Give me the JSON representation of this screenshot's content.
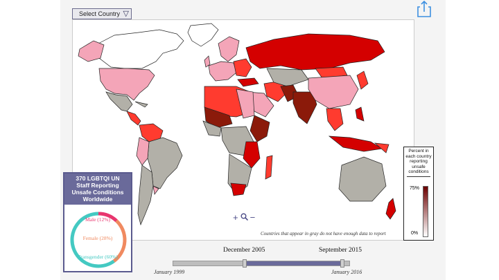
{
  "toolbar": {
    "select_label": "Select Country",
    "select_caret": "▽",
    "share_icon": "share-icon"
  },
  "colors": {
    "unsafe_high": "#d40000",
    "unsafe_mid": "#ff3b2f",
    "unsafe_low": "#f4a5b8",
    "dark_red": "#8b1a0a",
    "no_data": "#b2b0a8",
    "accent": "#6a6a9a"
  },
  "zoom": {
    "in": "+",
    "magnifier": "🔍",
    "out": "−"
  },
  "map_note": "Countries that appear in gray do not have enough data to report",
  "legend": {
    "title_lines": [
      "Percent in",
      "each country",
      "reporting",
      "unsafe",
      "conditions"
    ],
    "max_label": "75%",
    "min_label": "0%"
  },
  "stats": {
    "heading_lines": [
      "370 LGBTQI UN",
      "Staff Reporting",
      "Unsafe Conditions",
      "Worldwide"
    ],
    "segments": [
      {
        "label": "Male (12%)",
        "percent": 12,
        "color": "#e8356e"
      },
      {
        "label": "Female (28%)",
        "percent": 28,
        "color": "#f08a60"
      },
      {
        "label": "Transgender (60%)",
        "percent": 60,
        "color": "#44c9c2"
      }
    ]
  },
  "timeline": {
    "start_selected": "December 2005",
    "end_selected": "September 2015",
    "min": "January 1999",
    "max": "January 2016"
  }
}
